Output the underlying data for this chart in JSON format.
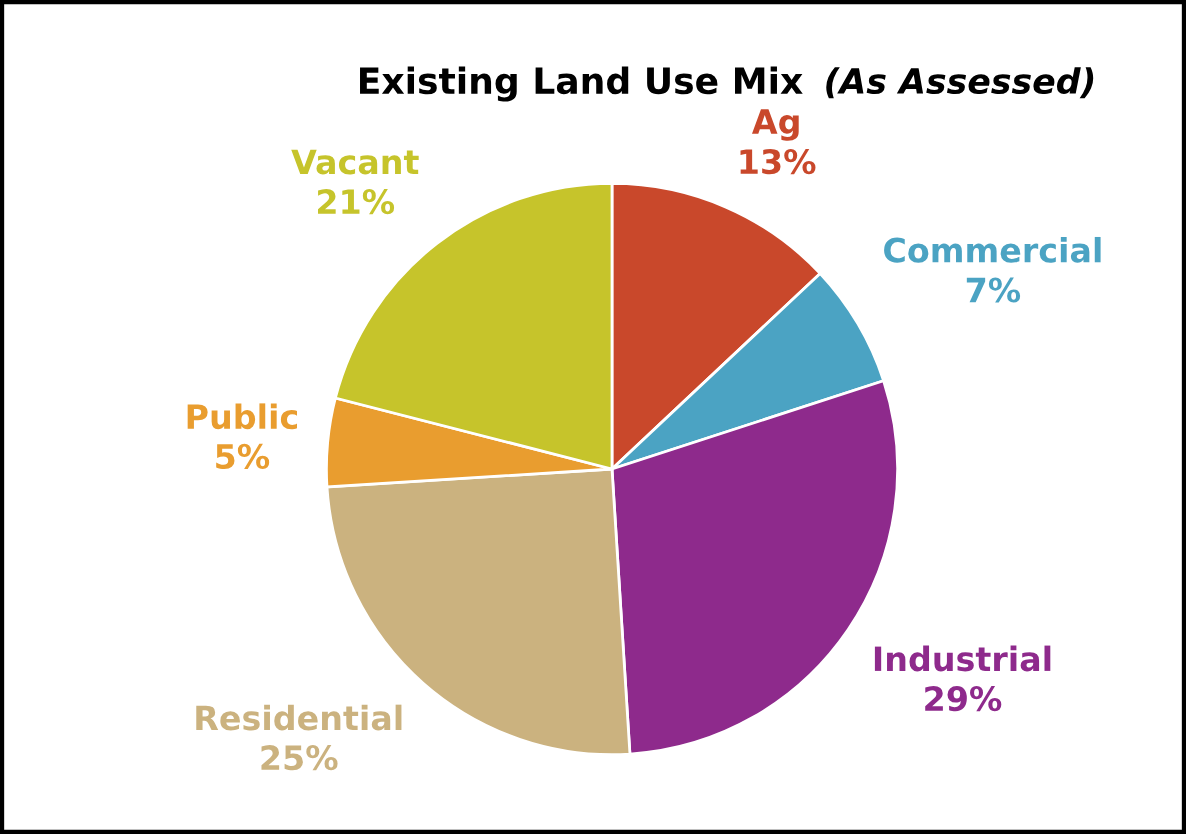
{
  "chart_data": {
    "type": "pie",
    "title": "Existing Land Use Mix",
    "subtitle": "(As Assessed)",
    "categories": [
      "Ag",
      "Commercial",
      "Industrial",
      "Residential",
      "Public",
      "Vacant"
    ],
    "values": [
      13,
      7,
      29,
      25,
      5,
      21
    ],
    "colors": [
      "#c9482b",
      "#4ba3c3",
      "#8e2a8c",
      "#cbb27f",
      "#e99d2f",
      "#c6c42b"
    ],
    "value_labels": [
      "13%",
      "7%",
      "29%",
      "25%",
      "5%",
      "21%"
    ],
    "legend": false
  }
}
